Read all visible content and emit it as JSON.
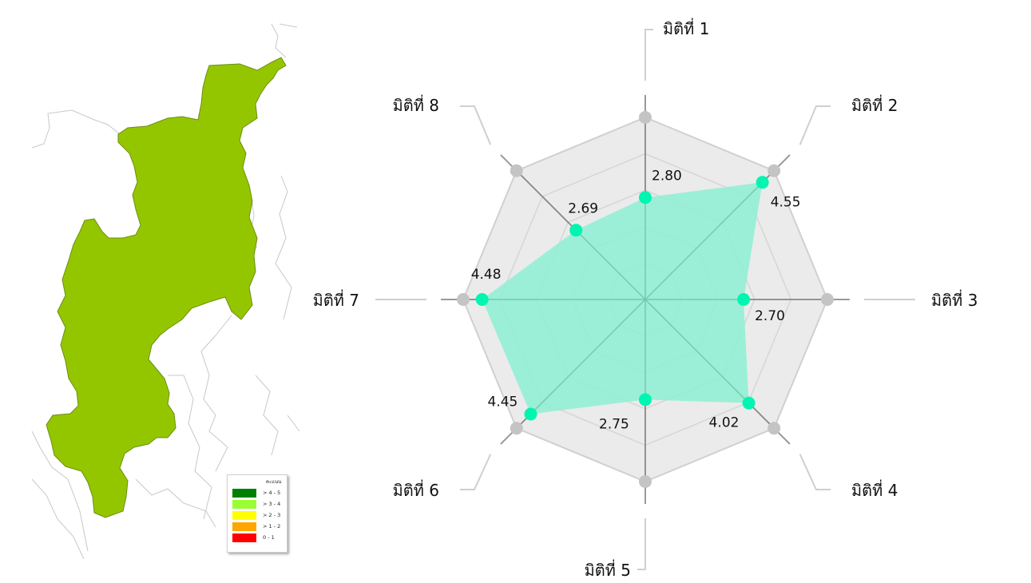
{
  "map": {
    "fill_color": "#94c600",
    "legend": {
      "title": "คะแนน",
      "items": [
        {
          "label": "> 4 - 5",
          "color": "#008000"
        },
        {
          "label": "> 3 - 4",
          "color": "#99ff33"
        },
        {
          "label": "> 2 - 3",
          "color": "#ffff00"
        },
        {
          "label": "> 1 - 2",
          "color": "#ffa500"
        },
        {
          "label": "0 - 1",
          "color": "#ff0000"
        }
      ]
    }
  },
  "chart_data": {
    "type": "radar",
    "categories": [
      "มิติที่ 1",
      "มิติที่ 2",
      "มิติที่ 3",
      "มิติที่ 4",
      "มิติที่ 5",
      "มิติที่ 6",
      "มิติที่ 7",
      "มิติที่ 8"
    ],
    "values": [
      2.8,
      4.55,
      2.7,
      4.02,
      2.75,
      4.45,
      4.48,
      2.69
    ],
    "value_labels": [
      "2.80",
      "4.55",
      "2.70",
      "4.02",
      "2.75",
      "4.45",
      "4.48",
      "2.69"
    ],
    "range": [
      0,
      5
    ],
    "grid_levels": 5,
    "series_color": "#00f5b0",
    "fill_color": "#8ef0d4",
    "grid_fill": "#ebebeb",
    "grid_line_color": "#d0d0d0",
    "axis_line_color": "#888888"
  }
}
